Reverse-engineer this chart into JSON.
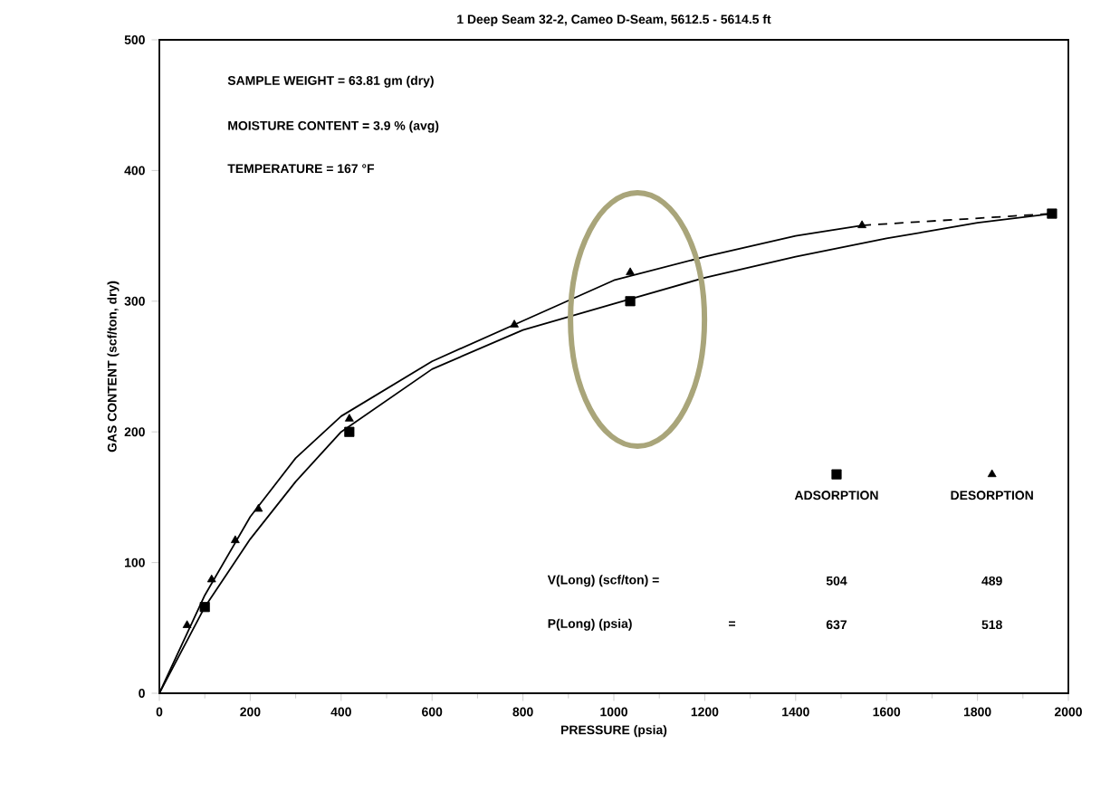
{
  "chart_data": {
    "type": "scatter",
    "title": "1 Deep Seam 32-2, Cameo D-Seam, 5612.5 - 5614.5 ft",
    "xlabel": "PRESSURE (psia)",
    "ylabel": "GAS CONTENT (scf/ton, dry)",
    "xlim": [
      0,
      2000
    ],
    "ylim": [
      0,
      500
    ],
    "xticks": [
      0,
      200,
      400,
      600,
      800,
      1000,
      1200,
      1400,
      1600,
      1800,
      2000
    ],
    "yticks": [
      0,
      100,
      200,
      300,
      400,
      500
    ],
    "grid": false,
    "legend": "bottom right",
    "series": [
      {
        "type": "line",
        "color": "#000000",
        "line_style": "solid",
        "marker": "none",
        "x": [
          0,
          100,
          200,
          300,
          400,
          600,
          800,
          1000,
          1200,
          1400,
          1600,
          1800,
          1964
        ],
        "values": [
          0,
          66,
          118,
          162,
          200,
          248,
          278,
          298,
          318,
          334,
          348,
          360,
          367
        ]
      },
      {
        "type": "line",
        "color": "#000000",
        "line_style": "solid",
        "marker": "none",
        "x": [
          0,
          100,
          200,
          300,
          400,
          600,
          800,
          1000,
          1200,
          1400,
          1546
        ],
        "values": [
          0,
          75,
          135,
          180,
          212,
          254,
          285,
          316,
          334,
          350,
          358
        ]
      },
      {
        "type": "line",
        "color": "#000000",
        "line_style": "dashed",
        "marker": "none",
        "x": [
          1546,
          1964
        ],
        "values": [
          358,
          367
        ]
      },
      {
        "name": "ADSORPTION",
        "color": "#000000",
        "marker": "square",
        "x": [
          100,
          418,
          1036,
          1964
        ],
        "values": [
          66,
          200,
          300,
          367
        ]
      },
      {
        "name": "DESORPTION",
        "color": "#000000",
        "marker": "triangle",
        "x": [
          61,
          115,
          167,
          218,
          418,
          781,
          1036,
          1546
        ],
        "values": [
          52,
          87,
          117,
          141,
          210,
          282,
          322,
          358
        ]
      }
    ],
    "annotations": [
      "SAMPLE WEIGHT = 63.81 gm (dry)",
      "MOISTURE CONTENT = 3.9 % (avg)",
      "TEMPERATURE = 167 °F",
      "V(Long) (scf/ton) =",
      "504",
      "489",
      "P(Long) (psia)",
      "=",
      "637",
      "518"
    ]
  }
}
